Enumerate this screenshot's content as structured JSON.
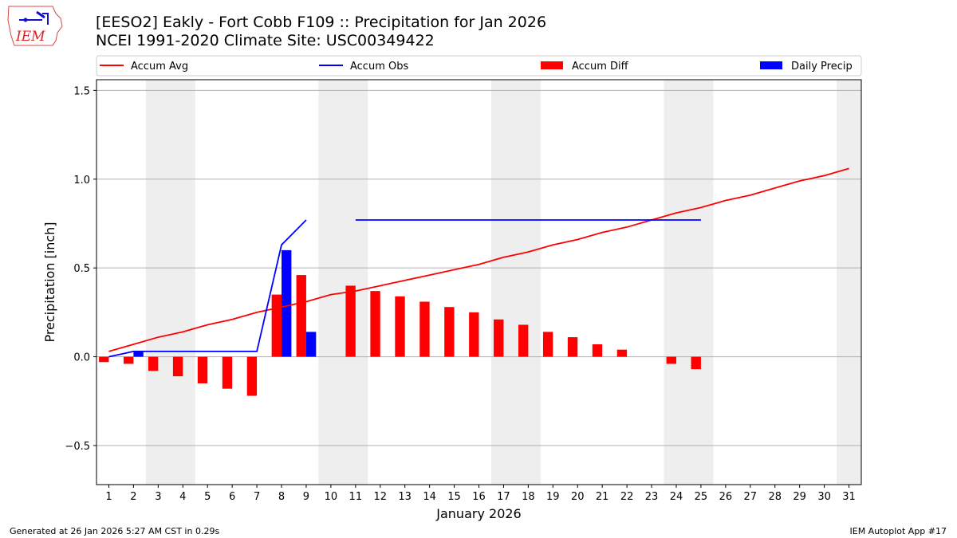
{
  "logo_text": "IEM",
  "title_line1": "[EESO2] Eakly - Fort Cobb F109 :: Precipitation for Jan 2026",
  "title_line2": "NCEI 1991-2020 Climate Site: USC00349422",
  "footer_left": "Generated at 26 Jan 2026 5:27 AM CST in 0.29s",
  "footer_right": "IEM Autoplot App #17",
  "chart_data": {
    "type": "bar+line",
    "xlabel": "January 2026",
    "ylabel": "Precipitation [inch]",
    "xlim": [
      0.5,
      31.5
    ],
    "ylim": [
      -0.72,
      1.56
    ],
    "yticks": [
      -0.5,
      0.0,
      0.5,
      1.0,
      1.5
    ],
    "ytick_labels": [
      "−0.5",
      "0.0",
      "0.5",
      "1.0",
      "1.5"
    ],
    "x": [
      1,
      2,
      3,
      4,
      5,
      6,
      7,
      8,
      9,
      10,
      11,
      12,
      13,
      14,
      15,
      16,
      17,
      18,
      19,
      20,
      21,
      22,
      23,
      24,
      25,
      26,
      27,
      28,
      29,
      30,
      31
    ],
    "weekend_spans": [
      [
        2.5,
        4.5
      ],
      [
        9.5,
        11.5
      ],
      [
        16.5,
        18.5
      ],
      [
        23.5,
        25.5
      ],
      [
        30.5,
        31.5
      ]
    ],
    "grid": "y",
    "legend_position": "top",
    "series": [
      {
        "name": "Accum Avg",
        "kind": "line",
        "color": "#ff0000",
        "values": [
          0.03,
          0.07,
          0.11,
          0.14,
          0.18,
          0.21,
          0.25,
          0.28,
          0.31,
          0.35,
          0.37,
          0.4,
          0.43,
          0.46,
          0.49,
          0.52,
          0.56,
          0.59,
          0.63,
          0.66,
          0.7,
          0.73,
          0.77,
          0.81,
          0.84,
          0.88,
          0.91,
          0.95,
          0.99,
          1.02,
          1.06
        ]
      },
      {
        "name": "Accum Obs",
        "kind": "line",
        "color": "#0000ff",
        "values": [
          0.0,
          0.03,
          0.03,
          0.03,
          0.03,
          0.03,
          0.03,
          0.63,
          0.77,
          null,
          0.77,
          0.77,
          0.77,
          0.77,
          0.77,
          0.77,
          0.77,
          0.77,
          0.77,
          0.77,
          0.77,
          0.77,
          0.77,
          0.77,
          0.77,
          null,
          null,
          null,
          null,
          null,
          null
        ]
      },
      {
        "name": "Accum Diff",
        "kind": "bar",
        "color": "#ff0000",
        "values": [
          -0.03,
          -0.04,
          -0.08,
          -0.11,
          -0.15,
          -0.18,
          -0.22,
          0.35,
          0.46,
          null,
          0.4,
          0.37,
          0.34,
          0.31,
          0.28,
          0.25,
          0.21,
          0.18,
          0.14,
          0.11,
          0.07,
          0.04,
          0.0,
          -0.04,
          -0.07,
          null,
          null,
          null,
          null,
          null,
          null
        ]
      },
      {
        "name": "Daily Precip",
        "kind": "bar",
        "color": "#0000ff",
        "values": [
          0,
          0.03,
          0,
          0,
          0,
          0,
          0,
          0.6,
          0.14,
          null,
          0,
          0,
          0,
          0,
          0,
          0,
          0,
          0,
          0,
          0,
          0,
          0,
          0,
          0,
          0,
          null,
          null,
          null,
          null,
          null,
          null
        ]
      }
    ]
  }
}
